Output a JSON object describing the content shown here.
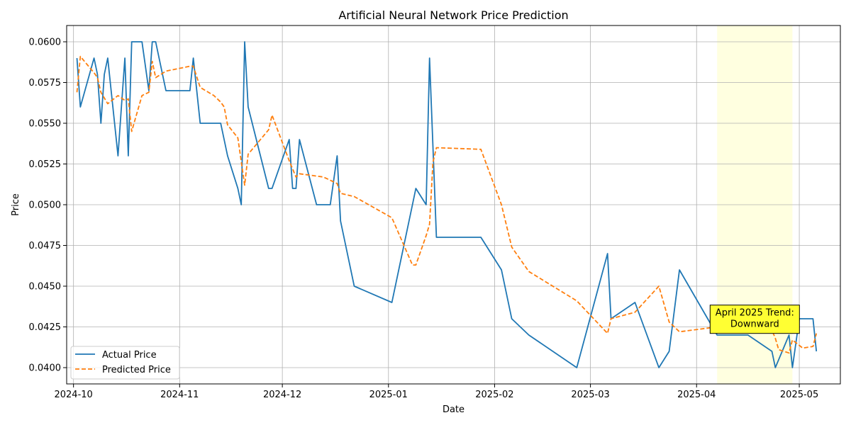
{
  "chart_data": {
    "type": "line",
    "title": "Artificial Neural Network Price Prediction",
    "xlabel": "Date",
    "ylabel": "Price",
    "xlim": [
      "2024-09-29",
      "2025-05-13"
    ],
    "ylim": [
      0.039,
      0.061
    ],
    "x_ticks": [
      {
        "date": "2024-10-01",
        "label": "2024-10"
      },
      {
        "date": "2024-11-01",
        "label": "2024-11"
      },
      {
        "date": "2024-12-01",
        "label": "2024-12"
      },
      {
        "date": "2025-01-01",
        "label": "2025-01"
      },
      {
        "date": "2025-02-01",
        "label": "2025-02"
      },
      {
        "date": "2025-03-01",
        "label": "2025-03"
      },
      {
        "date": "2025-04-01",
        "label": "2025-04"
      },
      {
        "date": "2025-05-01",
        "label": "2025-05"
      }
    ],
    "y_ticks": [
      {
        "value": 0.04,
        "label": "0.0400"
      },
      {
        "value": 0.0425,
        "label": "0.0425"
      },
      {
        "value": 0.045,
        "label": "0.0450"
      },
      {
        "value": 0.0475,
        "label": "0.0475"
      },
      {
        "value": 0.05,
        "label": "0.0500"
      },
      {
        "value": 0.0525,
        "label": "0.0525"
      },
      {
        "value": 0.055,
        "label": "0.0550"
      },
      {
        "value": 0.0575,
        "label": "0.0575"
      },
      {
        "value": 0.06,
        "label": "0.0600"
      }
    ],
    "grid": true,
    "legend_position": "lower-left",
    "highlight": {
      "start": "2025-04-07",
      "end": "2025-04-29",
      "color": "#ffffe0"
    },
    "annotation": {
      "text": [
        "April 2025 Trend:",
        "Downward"
      ],
      "date": "2025-04-18",
      "value": 0.0431,
      "bg_color": "#ffff33"
    },
    "series": [
      {
        "name": "Actual Price",
        "color": "#1f77b4",
        "style": "solid",
        "points": [
          [
            "2024-10-02",
            0.059
          ],
          [
            "2024-10-03",
            0.056
          ],
          [
            "2024-10-07",
            0.059
          ],
          [
            "2024-10-08",
            0.058
          ],
          [
            "2024-10-09",
            0.055
          ],
          [
            "2024-10-10",
            0.058
          ],
          [
            "2024-10-11",
            0.059
          ],
          [
            "2024-10-14",
            0.053
          ],
          [
            "2024-10-15",
            0.056
          ],
          [
            "2024-10-16",
            0.059
          ],
          [
            "2024-10-17",
            0.053
          ],
          [
            "2024-10-18",
            0.06
          ],
          [
            "2024-10-21",
            0.06
          ],
          [
            "2024-10-23",
            0.057
          ],
          [
            "2024-10-24",
            0.06
          ],
          [
            "2024-10-25",
            0.06
          ],
          [
            "2024-10-28",
            0.057
          ],
          [
            "2024-11-04",
            0.057
          ],
          [
            "2024-11-05",
            0.059
          ],
          [
            "2024-11-07",
            0.055
          ],
          [
            "2024-11-13",
            0.055
          ],
          [
            "2024-11-15",
            0.053
          ],
          [
            "2024-11-18",
            0.051
          ],
          [
            "2024-11-19",
            0.05
          ],
          [
            "2024-11-20",
            0.06
          ],
          [
            "2024-11-21",
            0.056
          ],
          [
            "2024-11-27",
            0.051
          ],
          [
            "2024-11-28",
            0.051
          ],
          [
            "2024-12-03",
            0.054
          ],
          [
            "2024-12-04",
            0.051
          ],
          [
            "2024-12-05",
            0.051
          ],
          [
            "2024-12-06",
            0.054
          ],
          [
            "2024-12-11",
            0.05
          ],
          [
            "2024-12-15",
            0.05
          ],
          [
            "2024-12-17",
            0.053
          ],
          [
            "2024-12-18",
            0.049
          ],
          [
            "2024-12-22",
            0.045
          ],
          [
            "2025-01-02",
            0.044
          ],
          [
            "2025-01-08",
            0.05
          ],
          [
            "2025-01-09",
            0.051
          ],
          [
            "2025-01-12",
            0.05
          ],
          [
            "2025-01-13",
            0.059
          ],
          [
            "2025-01-15",
            0.048
          ],
          [
            "2025-01-28",
            0.048
          ],
          [
            "2025-02-03",
            0.046
          ],
          [
            "2025-02-06",
            0.043
          ],
          [
            "2025-02-11",
            0.042
          ],
          [
            "2025-02-25",
            0.04
          ],
          [
            "2025-03-06",
            0.047
          ],
          [
            "2025-03-07",
            0.043
          ],
          [
            "2025-03-14",
            0.044
          ],
          [
            "2025-03-21",
            0.04
          ],
          [
            "2025-03-24",
            0.041
          ],
          [
            "2025-03-27",
            0.046
          ],
          [
            "2025-04-07",
            0.042
          ],
          [
            "2025-04-16",
            0.042
          ],
          [
            "2025-04-23",
            0.041
          ],
          [
            "2025-04-24",
            0.04
          ],
          [
            "2025-04-28",
            0.042
          ],
          [
            "2025-04-29",
            0.04
          ],
          [
            "2025-05-01",
            0.043
          ],
          [
            "2025-05-05",
            0.043
          ],
          [
            "2025-05-06",
            0.041
          ]
        ]
      },
      {
        "name": "Predicted Price",
        "color": "#ff7f0e",
        "style": "dashed",
        "points": [
          [
            "2024-10-02",
            0.0569
          ],
          [
            "2024-10-03",
            0.0591
          ],
          [
            "2024-10-07",
            0.0581
          ],
          [
            "2024-10-08",
            0.0578
          ],
          [
            "2024-10-09",
            0.0569
          ],
          [
            "2024-10-11",
            0.0562
          ],
          [
            "2024-10-14",
            0.0567
          ],
          [
            "2024-10-16",
            0.0564
          ],
          [
            "2024-10-17",
            0.0565
          ],
          [
            "2024-10-18",
            0.0545
          ],
          [
            "2024-10-21",
            0.0567
          ],
          [
            "2024-10-23",
            0.0569
          ],
          [
            "2024-10-24",
            0.0588
          ],
          [
            "2024-10-25",
            0.0578
          ],
          [
            "2024-10-28",
            0.0582
          ],
          [
            "2024-11-04",
            0.0585
          ],
          [
            "2024-11-05",
            0.0585
          ],
          [
            "2024-11-07",
            0.0572
          ],
          [
            "2024-11-11",
            0.0567
          ],
          [
            "2024-11-13",
            0.0563
          ],
          [
            "2024-11-14",
            0.056
          ],
          [
            "2024-11-15",
            0.0549
          ],
          [
            "2024-11-18",
            0.0541
          ],
          [
            "2024-11-20",
            0.0512
          ],
          [
            "2024-11-21",
            0.0531
          ],
          [
            "2024-11-27",
            0.0546
          ],
          [
            "2024-11-28",
            0.0555
          ],
          [
            "2024-12-03",
            0.0527
          ],
          [
            "2024-12-05",
            0.0517
          ],
          [
            "2024-12-06",
            0.0519
          ],
          [
            "2024-12-13",
            0.0517
          ],
          [
            "2024-12-17",
            0.0513
          ],
          [
            "2024-12-18",
            0.0507
          ],
          [
            "2024-12-22",
            0.0505
          ],
          [
            "2025-01-02",
            0.0492
          ],
          [
            "2025-01-08",
            0.0463
          ],
          [
            "2025-01-09",
            0.0463
          ],
          [
            "2025-01-12",
            0.0481
          ],
          [
            "2025-01-13",
            0.0488
          ],
          [
            "2025-01-14",
            0.0526
          ],
          [
            "2025-01-15",
            0.0535
          ],
          [
            "2025-01-28",
            0.0534
          ],
          [
            "2025-02-03",
            0.05
          ],
          [
            "2025-02-06",
            0.0474
          ],
          [
            "2025-02-11",
            0.0459
          ],
          [
            "2025-02-25",
            0.0441
          ],
          [
            "2025-03-06",
            0.0421
          ],
          [
            "2025-03-07",
            0.043
          ],
          [
            "2025-03-14",
            0.0434
          ],
          [
            "2025-03-21",
            0.045
          ],
          [
            "2025-03-24",
            0.0428
          ],
          [
            "2025-03-27",
            0.0422
          ],
          [
            "2025-04-07",
            0.0425
          ],
          [
            "2025-04-08",
            0.0432
          ],
          [
            "2025-04-16",
            0.0433
          ],
          [
            "2025-04-17",
            0.0423
          ],
          [
            "2025-04-23",
            0.0423
          ],
          [
            "2025-04-24",
            0.0418
          ],
          [
            "2025-04-25",
            0.0411
          ],
          [
            "2025-04-28",
            0.0409
          ],
          [
            "2025-04-29",
            0.0417
          ],
          [
            "2025-05-02",
            0.0412
          ],
          [
            "2025-05-05",
            0.0413
          ],
          [
            "2025-05-06",
            0.0421
          ]
        ]
      }
    ]
  }
}
